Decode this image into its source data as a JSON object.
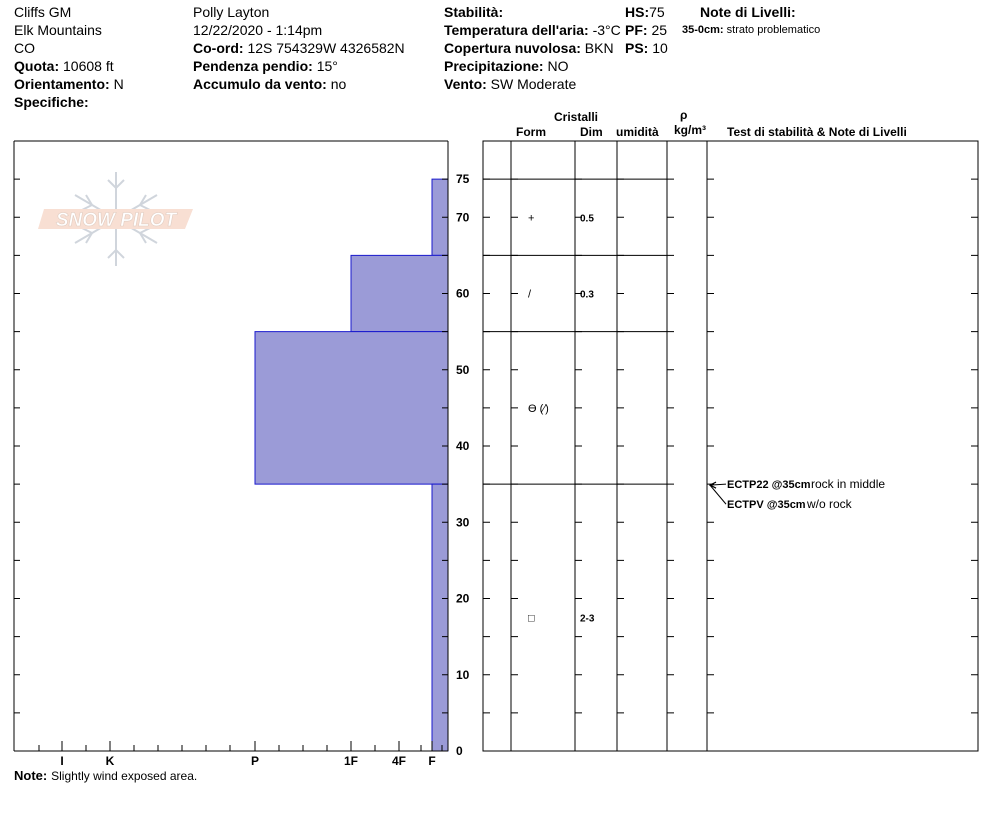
{
  "header": {
    "site": "Cliffs GM",
    "range": "Elk Mountains",
    "state": "CO",
    "elevation_label": "Quota:",
    "elevation_value": "10608 ft",
    "aspect_label": "Orientamento:",
    "aspect_value": "N",
    "specifics_label": "Specifiche:",
    "observer": "Polly Layton",
    "datetime": "12/22/2020 - 1:14pm",
    "coord_label": "Co-ord:",
    "coord_value": "12S 754329W 4326582N",
    "slope_label": "Pendenza pendio:",
    "slope_value": "15°",
    "wind_loading_label": "Accumulo da vento:",
    "wind_loading_value": "no",
    "stability_label": "Stabilità:",
    "air_temp_label": "Temperatura dell'aria:",
    "air_temp_value": "-3°C",
    "sky_label": "Copertura nuvolosa:",
    "sky_value": "BKN",
    "precip_label": "Precipitazione:",
    "precip_value": "NO",
    "wind_label": "Vento:",
    "wind_value": "SW Moderate",
    "hs_label": "HS:",
    "hs_value": "75",
    "pf_label": "PF:",
    "pf_value": "25",
    "ps_label": "PS:",
    "ps_value": "10",
    "layer_notes_label": "Note di Livelli:",
    "layer_note_depth": "35-0cm:",
    "layer_note_text": "strato problematico"
  },
  "columns": {
    "cristalli": "Cristalli",
    "form": "Form",
    "dim": "Dim",
    "umidita": "umidità",
    "rho": "ρ",
    "density_unit": "kg/m³",
    "tests": "Test di stabilità & Note di Livelli"
  },
  "watermark": "SNOW PILOT",
  "note_label": "Note:",
  "note_text": "Slightly wind exposed area.",
  "colors": {
    "hardness_fill": "#9b9bd7",
    "hardness_stroke": "#1a1acd"
  },
  "layers": [
    {
      "top": 75,
      "bottom": 65,
      "hardness": "F",
      "form_symbol": "+",
      "size": "0.5"
    },
    {
      "top": 65,
      "bottom": 55,
      "hardness": "1F",
      "form_symbol": "/",
      "size": "0.3"
    },
    {
      "top": 55,
      "bottom": 35,
      "hardness": "P",
      "form_symbol": "Ɵ (⁄)",
      "size": ""
    },
    {
      "top": 35,
      "bottom": 0,
      "hardness": "F",
      "form_symbol": "□",
      "size": "2-3"
    }
  ],
  "tests": [
    {
      "depth": 35,
      "code": "ECTP22 @35cm",
      "comment": "rock in middle"
    },
    {
      "depth": 35,
      "code": "ECTPV @35cm",
      "comment": "w/o rock"
    }
  ],
  "chart_data": {
    "type": "bar",
    "title": "",
    "xlabel": "",
    "ylabel": "",
    "orientation": "horizontal",
    "x_axis_ticks": [
      "I",
      "K",
      "P",
      "1F",
      "4F",
      "F"
    ],
    "y_axis_ticks": [
      0,
      10,
      20,
      30,
      40,
      50,
      60,
      70,
      75
    ],
    "ylim": [
      0,
      75
    ],
    "grid": false,
    "series": [
      {
        "values": [
          {
            "top": 75,
            "bottom": 65,
            "hardness": "F"
          },
          {
            "top": 65,
            "bottom": 55,
            "hardness": "1F"
          },
          {
            "top": 55,
            "bottom": 35,
            "hardness": "P"
          },
          {
            "top": 35,
            "bottom": 0,
            "hardness": "F"
          }
        ]
      }
    ]
  }
}
